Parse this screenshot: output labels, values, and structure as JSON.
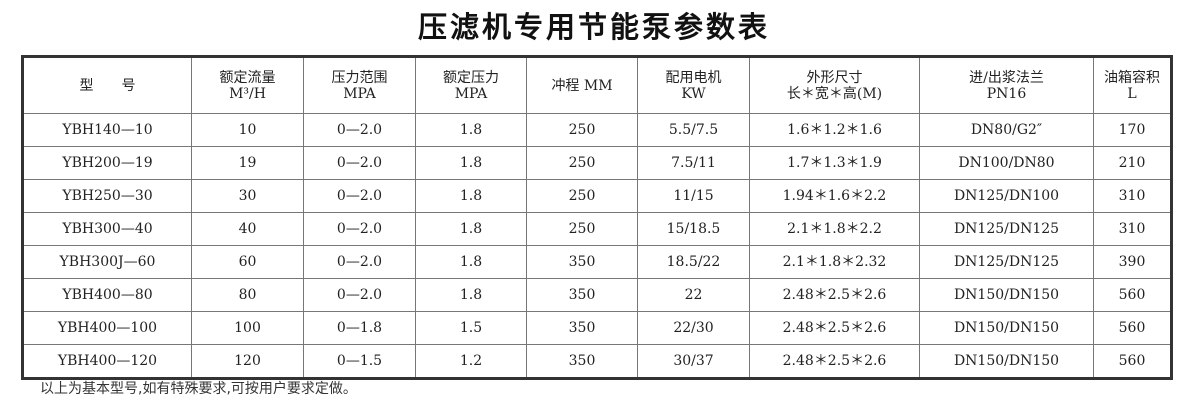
{
  "title": "压滤机专用节能泵参数表",
  "headers": [
    {
      "l1": "型　　号",
      "l2": ""
    },
    {
      "l1": "额定流量",
      "l2": "M³/H"
    },
    {
      "l1": "压力范围",
      "l2": "MPA"
    },
    {
      "l1": "额定压力",
      "l2": "MPA"
    },
    {
      "l1": "冲程 MM",
      "l2": ""
    },
    {
      "l1": "配用电机",
      "l2": "KW"
    },
    {
      "l1": "外形尺寸",
      "l2": "长＊宽＊高(M)"
    },
    {
      "l1": "进/出浆法兰",
      "l2": "PN16"
    },
    {
      "l1": "油箱容积",
      "l2": "L"
    }
  ],
  "rows": [
    [
      "YBH140—10",
      "10",
      "0—2.0",
      "1.8",
      "250",
      "5.5/7.5",
      "1.6＊1.2＊1.6",
      "DN80/G2″",
      "170"
    ],
    [
      "YBH200—19",
      "19",
      "0—2.0",
      "1.8",
      "250",
      "7.5/11",
      "1.7＊1.3＊1.9",
      "DN100/DN80",
      "210"
    ],
    [
      "YBH250—30",
      "30",
      "0—2.0",
      "1.8",
      "250",
      "11/15",
      "1.94＊1.6＊2.2",
      "DN125/DN100",
      "310"
    ],
    [
      "YBH300—40",
      "40",
      "0—2.0",
      "1.8",
      "250",
      "15/18.5",
      "2.1＊1.8＊2.2",
      "DN125/DN125",
      "310"
    ],
    [
      "YBH300J—60",
      "60",
      "0—2.0",
      "1.8",
      "350",
      "18.5/22",
      "2.1＊1.8＊2.32",
      "DN125/DN125",
      "390"
    ],
    [
      "YBH400—80",
      "80",
      "0—2.0",
      "1.8",
      "350",
      "22",
      "2.48＊2.5＊2.6",
      "DN150/DN150",
      "560"
    ],
    [
      "YBH400—100",
      "100",
      "0—1.8",
      "1.5",
      "350",
      "22/30",
      "2.48＊2.5＊2.6",
      "DN150/DN150",
      "560"
    ],
    [
      "YBH400—120",
      "120",
      "0—1.5",
      "1.2",
      "350",
      "30/37",
      "2.48＊2.5＊2.6",
      "DN150/DN150",
      "560"
    ]
  ],
  "footnote": "以上为基本型号,如有特殊要求,可按用户要求定做。"
}
